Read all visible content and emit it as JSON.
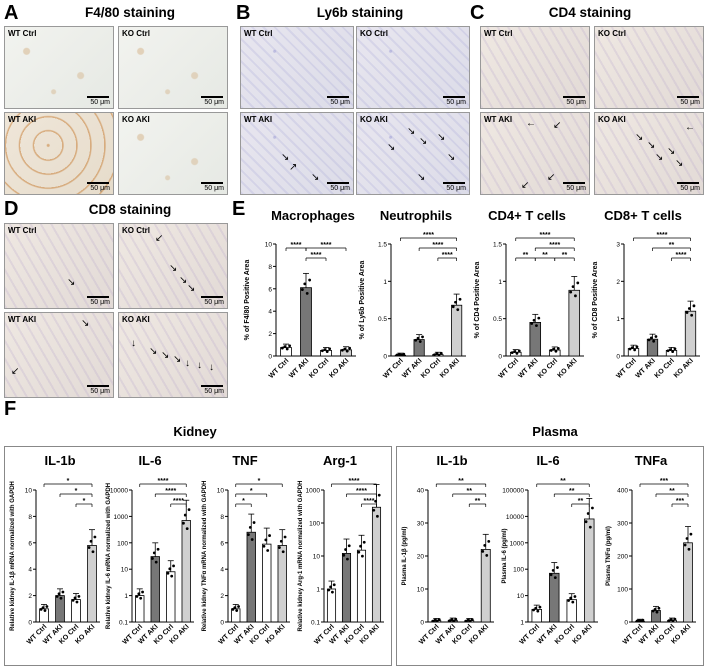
{
  "panel_letters": [
    "A",
    "B",
    "C",
    "D",
    "E",
    "F"
  ],
  "panelA": {
    "title": "F4/80 staining",
    "images": [
      {
        "label": "WT Ctrl"
      },
      {
        "label": "KO Ctrl"
      },
      {
        "label": "WT AKI"
      },
      {
        "label": "KO AKI"
      }
    ],
    "scale": "50 μm"
  },
  "panelB": {
    "title": "Ly6b staining",
    "images": [
      {
        "label": "WT Ctrl"
      },
      {
        "label": "KO Ctrl"
      },
      {
        "label": "WT AKI"
      },
      {
        "label": "KO AKI"
      }
    ],
    "scale": "50 μm"
  },
  "panelC": {
    "title": "CD4 staining",
    "images": [
      {
        "label": "WT Ctrl"
      },
      {
        "label": "KO Ctrl"
      },
      {
        "label": "WT AKI"
      },
      {
        "label": "KO AKI"
      }
    ],
    "scale": "50 μm"
  },
  "panelD": {
    "title": "CD8 staining",
    "images": [
      {
        "label": "WT Ctrl"
      },
      {
        "label": "KO Ctrl"
      },
      {
        "label": "WT AKI"
      },
      {
        "label": "KO AKI"
      }
    ],
    "scale": "50 μm"
  },
  "panelE": {
    "titles": [
      "Macrophages",
      "Neutrophils",
      "CD4+ T cells",
      "CD8+ T cells"
    ]
  },
  "panelF": {
    "groups": [
      "Kidney",
      "Plasma"
    ],
    "titles": [
      "IL-1b",
      "IL-6",
      "TNF",
      "Arg-1",
      "IL-1b",
      "IL-6",
      "TNFa"
    ]
  },
  "chart_data": [
    {
      "type": "bar",
      "categories": [
        "WT Ctrl",
        "WT AKI",
        "KO Ctrl",
        "KO AKI"
      ],
      "values": [
        0.75,
        6.1,
        0.5,
        0.55
      ],
      "ylabel": "% of F4/80 Positive Area",
      "ylim": [
        0,
        10
      ],
      "yticks": [
        0,
        2,
        4,
        6,
        8,
        10
      ],
      "sig": [
        "****",
        "****",
        "****"
      ]
    },
    {
      "type": "bar",
      "categories": [
        "WT Ctrl",
        "WT AKI",
        "KO Ctrl",
        "KO AKI"
      ],
      "values": [
        0.01,
        0.22,
        0.02,
        0.68
      ],
      "ylabel": "% of Ly6b Positive Area",
      "ylim": [
        0,
        1.5
      ],
      "yticks": [
        0.0,
        0.5,
        1.0,
        1.5
      ],
      "sig": [
        "****",
        "****",
        "****"
      ]
    },
    {
      "type": "bar",
      "categories": [
        "WT Ctrl",
        "WT AKI",
        "KO Ctrl",
        "KO AKI"
      ],
      "values": [
        0.05,
        0.45,
        0.08,
        0.88
      ],
      "ylabel": "% of CD4 Positive Area",
      "ylim": [
        0,
        1.5
      ],
      "yticks": [
        0.0,
        0.5,
        1.0,
        1.5
      ],
      "sig": [
        "****",
        "**",
        "**",
        "**",
        "****"
      ]
    },
    {
      "type": "bar",
      "categories": [
        "WT Ctrl",
        "WT AKI",
        "KO Ctrl",
        "KO AKI"
      ],
      "values": [
        0.2,
        0.45,
        0.15,
        1.2
      ],
      "ylabel": "% of CD8 Positive Area",
      "ylim": [
        0,
        3
      ],
      "yticks": [
        0,
        1,
        2,
        3
      ],
      "sig": [
        "****",
        "**",
        "****"
      ]
    },
    {
      "type": "bar",
      "log": true,
      "categories": [
        "WT Ctrl",
        "WT AKI",
        "KO Ctrl",
        "KO AKI"
      ],
      "values": [
        1,
        2,
        1.7,
        5.8
      ],
      "ylabel": "Relative kidney IL-1β mRNA normalized with GAPDH",
      "ylim": [
        0,
        10
      ],
      "yticks": [
        0,
        2,
        4,
        6,
        8,
        10
      ],
      "sig": [
        "*",
        "*",
        "*"
      ]
    },
    {
      "type": "bar",
      "categories": [
        "WT Ctrl",
        "WT AKI",
        "KO Ctrl",
        "KO AKI"
      ],
      "values": [
        1,
        30,
        8,
        700
      ],
      "ylabel": "Relative kidney IL-6 mRNA normalized with GAPDH",
      "ylim": [
        0.1,
        10000
      ],
      "yticks": [
        0.1,
        1,
        10,
        100,
        1000,
        10000
      ],
      "sig": [
        "****",
        "****",
        "****"
      ]
    },
    {
      "type": "bar",
      "categories": [
        "WT Ctrl",
        "WT AKI",
        "KO Ctrl",
        "KO AKI"
      ],
      "values": [
        1,
        6.8,
        5.9,
        5.8
      ],
      "ylabel": "Relative kidney TNFα mRNA normalized with GAPDH",
      "ylim": [
        0,
        10
      ],
      "yticks": [
        0,
        2,
        4,
        6,
        8,
        10
      ],
      "sig": [
        "*",
        "*",
        "*"
      ]
    },
    {
      "type": "bar",
      "categories": [
        "WT Ctrl",
        "WT AKI",
        "KO Ctrl",
        "KO AKI"
      ],
      "values": [
        1,
        12,
        15,
        300
      ],
      "ylabel": "Relative kidney Arg-1 mRNA normalized with GAPDH",
      "ylim": [
        0.1,
        1000
      ],
      "yticks": [
        0.1,
        1,
        10,
        100,
        1000
      ],
      "sig": [
        "****",
        "****",
        "****"
      ]
    },
    {
      "type": "bar",
      "categories": [
        "WT Ctrl",
        "WT AKI",
        "KO Ctrl",
        "KO AKI"
      ],
      "values": [
        0.4,
        0.5,
        0.4,
        22
      ],
      "ylabel": "Plasma IL-1β (pg/ml)",
      "ylim": [
        0,
        40
      ],
      "yticks": [
        0,
        10,
        20,
        30,
        40
      ],
      "sig": [
        "**",
        "**",
        "**"
      ]
    },
    {
      "type": "bar",
      "categories": [
        "WT Ctrl",
        "WT AKI",
        "KO Ctrl",
        "KO AKI"
      ],
      "values": [
        3,
        70,
        7,
        8000
      ],
      "ylabel": "Plasma IL-6 (pg/ml)",
      "ylim": [
        1,
        100000
      ],
      "yticks": [
        1,
        10,
        100,
        1000,
        10000,
        100000
      ],
      "sig": [
        "**",
        "**",
        "**"
      ]
    },
    {
      "type": "bar",
      "categories": [
        "WT Ctrl",
        "WT AKI",
        "KO Ctrl",
        "KO AKI"
      ],
      "values": [
        2,
        35,
        5,
        240
      ],
      "ylabel": "Plasma TNFα (pg/ml)",
      "ylim": [
        0,
        400
      ],
      "yticks": [
        0,
        100,
        200,
        300,
        400
      ],
      "sig": [
        "***",
        "**",
        "***"
      ]
    }
  ]
}
